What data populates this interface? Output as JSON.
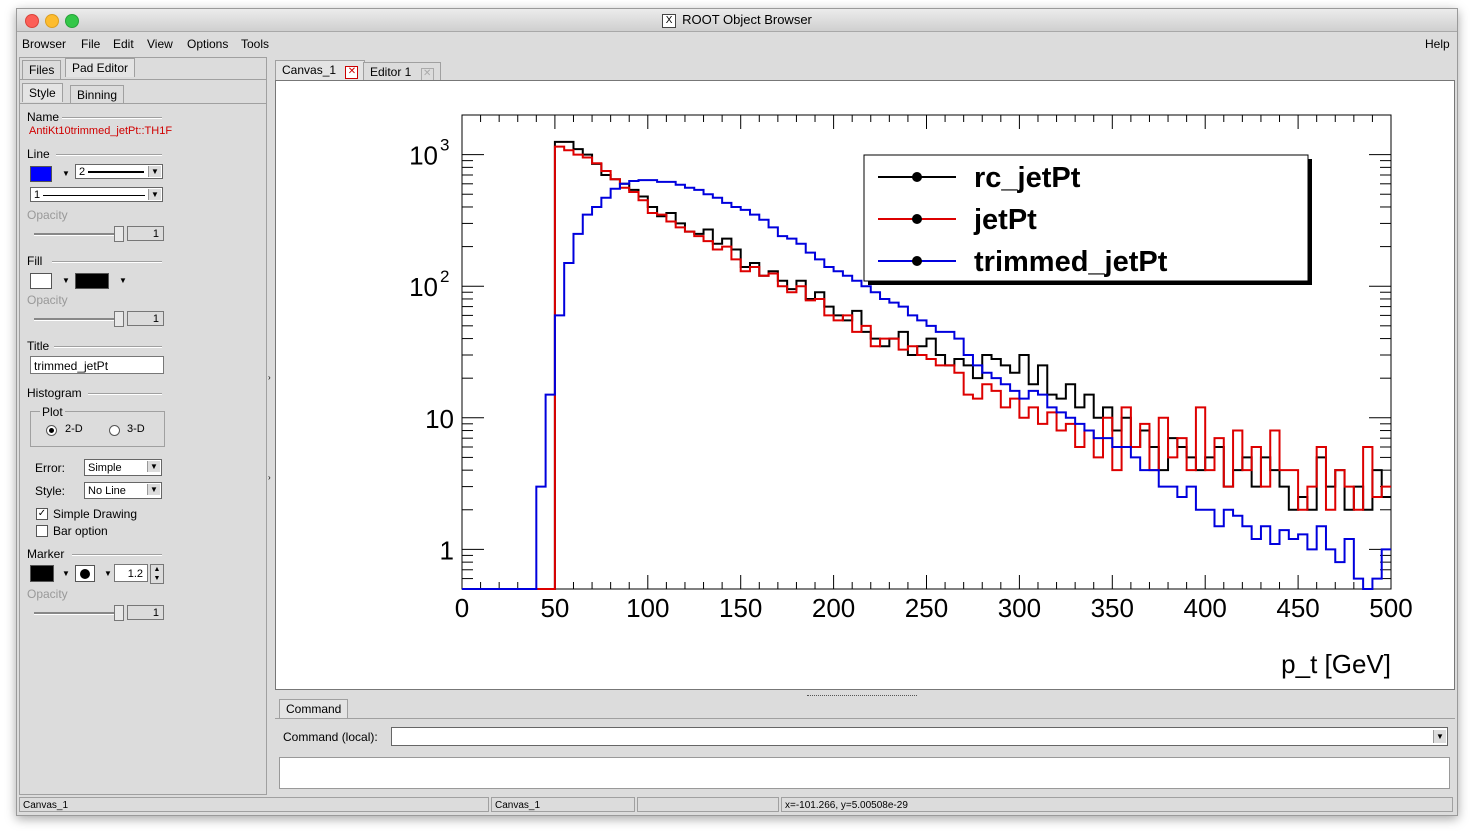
{
  "window": {
    "title": "ROOT Object Browser",
    "x_icon": "X"
  },
  "menubar": {
    "items": [
      "Browser",
      "File",
      "Edit",
      "View",
      "Options",
      "Tools"
    ],
    "help": "Help"
  },
  "left_tabs": {
    "files": "Files",
    "pad_editor": "Pad Editor"
  },
  "sub_tabs": {
    "style": "Style",
    "binning": "Binning"
  },
  "editor": {
    "name_label": "Name",
    "name_value": "AntiKt10trimmed_jetPt::TH1F",
    "line_label": "Line",
    "line_color": "#0000ff",
    "line_width": "2",
    "line_style": "1",
    "opacity_label": "Opacity",
    "line_opacity": "1",
    "fill_label": "Fill",
    "fill_color": "#ffffff",
    "fill_pattern_color": "#000000",
    "fill_opacity": "1",
    "title_label": "Title",
    "title_value": "trimmed_jetPt",
    "histogram_label": "Histogram",
    "plot_label": "Plot",
    "plot_2d": "2-D",
    "plot_3d": "3-D",
    "error_label": "Error:",
    "error_value": "Simple",
    "style_label": "Style:",
    "style_value": "No Line",
    "simple_drawing": "Simple Drawing",
    "bar_option": "Bar option",
    "marker_label": "Marker",
    "marker_color": "#000000",
    "marker_size": "1.2",
    "marker_opacity": "1"
  },
  "canvas_tabs": {
    "canvas": "Canvas_1",
    "editor": "Editor 1"
  },
  "command": {
    "tab": "Command",
    "label": "Command (local):",
    "value": ""
  },
  "status": {
    "s1": "Canvas_1",
    "s2": "Canvas_1",
    "s3": "",
    "s4": "x=-101.266, y=5.00508e-29"
  },
  "chart_data": {
    "type": "line",
    "xlabel": "p_t [GeV]",
    "ylabel": "",
    "xlim": [
      0,
      500
    ],
    "ylim": [
      0.5,
      2000
    ],
    "yscale": "log",
    "x_ticks": [
      "0",
      "50",
      "100",
      "150",
      "200",
      "250",
      "300",
      "350",
      "400",
      "450",
      "500"
    ],
    "y_ticks": [
      {
        "base": "10",
        "exp": "3"
      },
      {
        "base": "10",
        "exp": "2"
      },
      {
        "base": "10",
        "exp": ""
      },
      {
        "base": "1",
        "exp": ""
      }
    ],
    "legend_position": "top-right",
    "x_bin_edges_start": 0,
    "bin_width": 5,
    "series": [
      {
        "name": "rc_jetPt",
        "color": "#000000",
        "values": [
          0.5,
          0.5,
          0.5,
          0.5,
          0.5,
          0.5,
          0.5,
          0.5,
          0.5,
          0.5,
          1250,
          1250,
          1100,
          1000,
          850,
          700,
          650,
          600,
          540,
          480,
          400,
          340,
          360,
          300,
          260,
          250,
          270,
          210,
          230,
          190,
          140,
          150,
          120,
          130,
          110,
          95,
          110,
          80,
          90,
          70,
          60,
          55,
          65,
          45,
          40,
          35,
          40,
          45,
          30,
          35,
          40,
          30,
          25,
          28,
          25,
          20,
          30,
          28,
          25,
          22,
          30,
          18,
          25,
          15,
          14,
          18,
          12,
          15,
          10,
          12,
          8,
          10,
          6,
          8,
          6,
          4,
          7,
          6,
          5,
          4,
          5,
          6,
          3,
          4,
          5,
          3,
          5,
          4,
          3,
          2,
          2.5,
          2,
          5,
          3,
          4,
          2,
          3,
          2,
          4,
          2.5
        ]
      },
      {
        "name": "jetPt",
        "color": "#dd0000",
        "values": [
          0.5,
          0.5,
          0.5,
          0.5,
          0.5,
          0.5,
          0.5,
          0.5,
          0.5,
          0.5,
          1150,
          1080,
          1000,
          950,
          860,
          750,
          650,
          560,
          520,
          450,
          360,
          350,
          310,
          280,
          260,
          240,
          220,
          190,
          200,
          160,
          130,
          140,
          120,
          125,
          100,
          90,
          100,
          78,
          80,
          60,
          55,
          60,
          45,
          50,
          35,
          40,
          40,
          33,
          35,
          30,
          28,
          25,
          25,
          22,
          15,
          14,
          18,
          16,
          12,
          14,
          10,
          12,
          9,
          11,
          8,
          9,
          6,
          8,
          5,
          10,
          4,
          12,
          6,
          9,
          4,
          10,
          5,
          7,
          4,
          12,
          4,
          7,
          3,
          8,
          4,
          6,
          3,
          8,
          4,
          4,
          2,
          3,
          6,
          2,
          4,
          3,
          2,
          6,
          2.5,
          3
        ]
      },
      {
        "name": "trimmed_jetPt",
        "color": "#0000dd",
        "values": [
          0.5,
          0.5,
          0.5,
          0.5,
          0.5,
          0.5,
          0.5,
          0.5,
          3,
          15,
          60,
          150,
          250,
          350,
          400,
          470,
          550,
          600,
          630,
          640,
          640,
          620,
          620,
          590,
          560,
          540,
          500,
          470,
          430,
          400,
          380,
          350,
          320,
          280,
          240,
          230,
          210,
          180,
          160,
          140,
          130,
          120,
          110,
          100,
          90,
          80,
          75,
          70,
          60,
          55,
          50,
          45,
          45,
          40,
          30,
          25,
          22,
          20,
          18,
          16,
          14,
          16,
          15,
          12,
          11,
          10,
          9,
          8,
          7,
          7,
          6,
          6,
          5,
          4,
          4,
          3,
          3,
          2.5,
          3,
          2,
          2,
          1.5,
          2,
          1.8,
          1.5,
          1.2,
          1.5,
          1.1,
          1.4,
          1.2,
          1.3,
          1,
          1.5,
          1,
          0.8,
          1.2,
          0.6,
          0.5,
          0.6,
          1
        ]
      }
    ]
  }
}
